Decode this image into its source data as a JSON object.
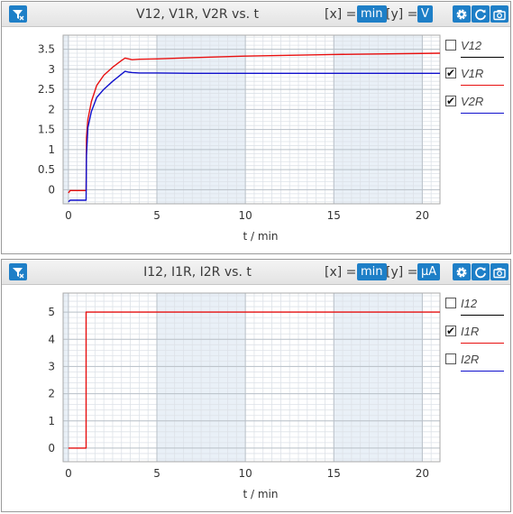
{
  "panels": [
    {
      "title": "V12, V1R, V2R vs. t",
      "x_label": "[x] =",
      "x_unit": "min",
      "y_label": "[y] =",
      "y_unit": "V",
      "icons": {
        "reset": "reset-zoom-icon",
        "settings": "gear-icon",
        "refresh": "refresh-icon",
        "export": "camera-icon"
      },
      "legend": [
        {
          "name": "V12",
          "checked": false,
          "color": "#000000"
        },
        {
          "name": "V1R",
          "checked": true,
          "color": "#e81010"
        },
        {
          "name": "V2R",
          "checked": true,
          "color": "#1010cc"
        }
      ],
      "chart_data": {
        "type": "line",
        "xlabel": "t / min",
        "ylabel": "",
        "xlim": [
          -0.3,
          21
        ],
        "ylim": [
          -0.35,
          3.85
        ],
        "x_ticks": [
          0,
          5,
          10,
          15,
          20
        ],
        "y_ticks": [
          0,
          0.5,
          1,
          1.5,
          2,
          2.5,
          3,
          3.5
        ],
        "grid": true,
        "legend_position": "right",
        "series": [
          {
            "name": "V1R",
            "x": [
              0,
              0.1,
              0.2,
              1.0,
              1.02,
              1.1,
              1.3,
              1.6,
              2.0,
              2.5,
              3.0,
              3.2,
              3.4,
              3.6,
              4.0,
              5.0,
              7.0,
              10.0,
              15.0,
              21.0
            ],
            "y": [
              -0.08,
              -0.02,
              -0.02,
              -0.02,
              1.3,
              1.75,
              2.2,
              2.6,
              2.85,
              3.05,
              3.22,
              3.28,
              3.26,
              3.24,
              3.25,
              3.26,
              3.29,
              3.33,
              3.37,
              3.4
            ]
          },
          {
            "name": "V2R",
            "x": [
              0,
              0.1,
              0.2,
              1.0,
              1.02,
              1.1,
              1.3,
              1.6,
              2.0,
              2.5,
              3.0,
              3.2,
              3.4,
              3.6,
              4.0,
              5.0,
              7.0,
              10.0,
              15.0,
              21.0
            ],
            "y": [
              -0.3,
              -0.26,
              -0.26,
              -0.26,
              0.85,
              1.55,
              1.95,
              2.3,
              2.5,
              2.7,
              2.88,
              2.95,
              2.93,
              2.92,
              2.91,
              2.91,
              2.9,
              2.9,
              2.9,
              2.9
            ]
          }
        ]
      }
    },
    {
      "title": "I12, I1R, I2R vs. t",
      "x_label": "[x] =",
      "x_unit": "min",
      "y_label": "[y] =",
      "y_unit": "μA",
      "icons": {
        "reset": "reset-zoom-icon",
        "settings": "gear-icon",
        "refresh": "refresh-icon",
        "export": "camera-icon"
      },
      "legend": [
        {
          "name": "I12",
          "checked": false,
          "color": "#000000"
        },
        {
          "name": "I1R",
          "checked": true,
          "color": "#e81010"
        },
        {
          "name": "I2R",
          "checked": false,
          "color": "#1010cc"
        }
      ],
      "chart_data": {
        "type": "line",
        "xlabel": "t / min",
        "ylabel": "",
        "xlim": [
          -0.3,
          21
        ],
        "ylim": [
          -0.5,
          5.7
        ],
        "x_ticks": [
          0,
          5,
          10,
          15,
          20
        ],
        "y_ticks": [
          0,
          1,
          2,
          3,
          4,
          5
        ],
        "grid": true,
        "legend_position": "right",
        "series": [
          {
            "name": "I1R",
            "x": [
              0,
              1.0,
              1.0,
              21.0
            ],
            "y": [
              0,
              0,
              5,
              5
            ]
          }
        ]
      }
    }
  ]
}
